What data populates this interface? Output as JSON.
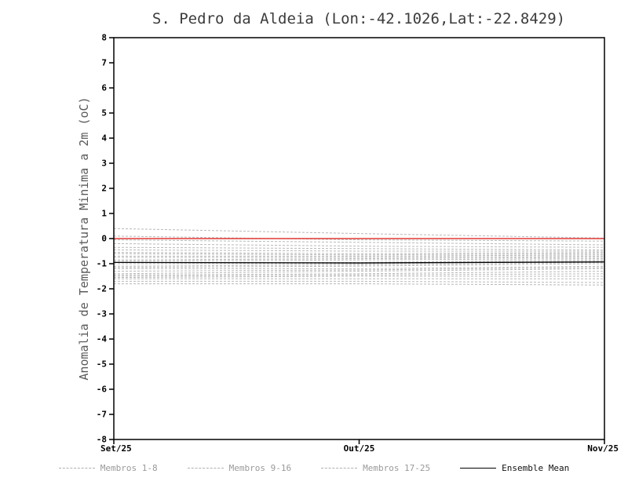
{
  "title": "S. Pedro da Aldeia (Lon:-42.1026,Lat:-22.8429)",
  "ylabel": "Anomalia de Temperatura Minima a 2m (oC)",
  "legend": [
    {
      "label": "Membros 1-8",
      "style": "dashed",
      "color": "#b0b0b0",
      "text_color": "#9a9a9a"
    },
    {
      "label": "Membros 9-16",
      "style": "dashed",
      "color": "#b0b0b0",
      "text_color": "#9a9a9a"
    },
    {
      "label": "Membros 17-25",
      "style": "dashed",
      "color": "#b0b0b0",
      "text_color": "#9a9a9a"
    },
    {
      "label": "Ensemble Mean",
      "style": "solid",
      "color": "#000000",
      "text_color": "#111111"
    }
  ],
  "chart_data": {
    "type": "line",
    "x_ticks": [
      "Set/25",
      "Out/25",
      "Nov/25"
    ],
    "ylim": [
      -8,
      8
    ],
    "ytick_step": 1,
    "grid": false,
    "member_color": "#b8b8b8",
    "mean_color": "#000000",
    "reference_line": {
      "name": "zero-reference",
      "color": "#e03c36",
      "values": [
        0.0,
        0.0,
        0.0
      ]
    },
    "ensemble_mean": [
      -0.95,
      -0.97,
      -0.93
    ],
    "members": [
      [
        0.4,
        0.2,
        0.02
      ],
      [
        0.1,
        -0.05,
        -0.1
      ],
      [
        -0.05,
        -0.15,
        -0.25
      ],
      [
        -0.2,
        -0.3,
        -0.35
      ],
      [
        -0.35,
        -0.4,
        -0.45
      ],
      [
        -0.45,
        -0.5,
        -0.5
      ],
      [
        -0.55,
        -0.6,
        -0.55
      ],
      [
        -0.6,
        -0.65,
        -0.6
      ],
      [
        -0.7,
        -0.7,
        -0.65
      ],
      [
        -0.75,
        -0.75,
        -0.7
      ],
      [
        -0.85,
        -0.8,
        -0.75
      ],
      [
        -0.9,
        -0.85,
        -0.8
      ],
      [
        -0.95,
        -0.95,
        -0.85
      ],
      [
        -1.0,
        -1.0,
        -0.9
      ],
      [
        -1.1,
        -1.05,
        -0.95
      ],
      [
        -1.15,
        -1.1,
        -1.0
      ],
      [
        -1.2,
        -1.2,
        -1.1
      ],
      [
        -1.3,
        -1.25,
        -1.15
      ],
      [
        -1.4,
        -1.3,
        -1.2
      ],
      [
        -1.45,
        -1.4,
        -1.3
      ],
      [
        -1.5,
        -1.45,
        -1.4
      ],
      [
        -1.55,
        -1.5,
        -1.5
      ],
      [
        -1.6,
        -1.6,
        -1.6
      ],
      [
        -1.7,
        -1.7,
        -1.75
      ],
      [
        -1.8,
        -1.8,
        -1.85
      ]
    ]
  }
}
